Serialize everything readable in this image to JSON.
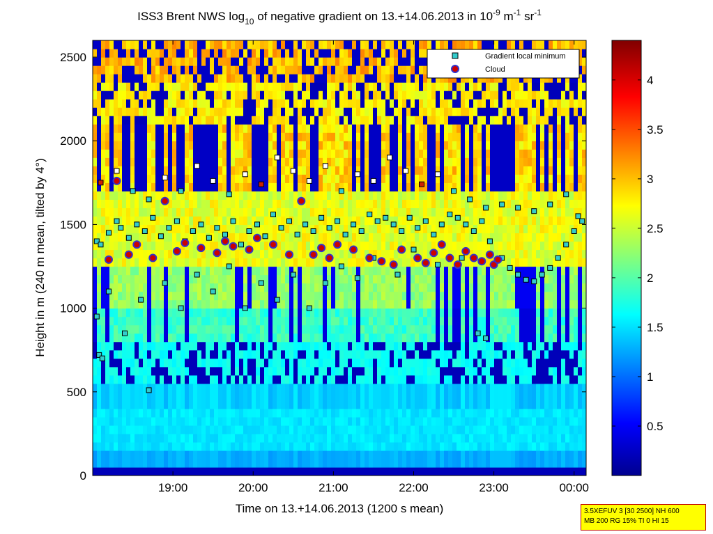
{
  "chart_data": {
    "type": "heatmap",
    "title": {
      "pre": "ISS3 Brent NWS log",
      "sub1": "10",
      "mid": " of negative gradient on 13.+14.06.2013 in 10",
      "sup1": "-9",
      "mid2": " m",
      "sup2": "-1",
      "mid3": " sr",
      "sup3": "-1"
    },
    "xlabel": "Time on 13.+14.06.2013 (1200 s mean)",
    "ylabel": "Height in m (240 m mean, tilted by 4°)",
    "xlim_hours": [
      18.0,
      24.15
    ],
    "ylim": [
      0,
      2600
    ],
    "x_ticks": [
      {
        "value": 19.0,
        "label": "19:00"
      },
      {
        "value": 20.0,
        "label": "20:00"
      },
      {
        "value": 21.0,
        "label": "21:00"
      },
      {
        "value": 22.0,
        "label": "22:00"
      },
      {
        "value": 23.0,
        "label": "23:00"
      },
      {
        "value": 24.0,
        "label": "00:00"
      }
    ],
    "y_ticks": [
      {
        "value": 0,
        "label": "0"
      },
      {
        "value": 500,
        "label": "500"
      },
      {
        "value": 1000,
        "label": "1000"
      },
      {
        "value": 1500,
        "label": "1500"
      },
      {
        "value": 2000,
        "label": "2000"
      },
      {
        "value": 2500,
        "label": "2500"
      }
    ],
    "colorbar": {
      "range": [
        0,
        4.4
      ],
      "ticks": [
        {
          "value": 0.5,
          "label": "0.5"
        },
        {
          "value": 1.0,
          "label": "1"
        },
        {
          "value": 1.5,
          "label": "1.5"
        },
        {
          "value": 2.0,
          "label": "2"
        },
        {
          "value": 2.5,
          "label": "2.5"
        },
        {
          "value": 3.0,
          "label": "3"
        },
        {
          "value": 3.5,
          "label": "3.5"
        },
        {
          "value": 4.0,
          "label": "4"
        }
      ],
      "colormap": "jet"
    },
    "legend": {
      "placement": "top-right",
      "entries": [
        {
          "label": "Gradient local minimum",
          "marker": "square",
          "color": "#33cccc"
        },
        {
          "label": "Cloud",
          "marker": "circle",
          "color": "#cc0000",
          "edge": "#3333cc"
        }
      ]
    },
    "series": [
      {
        "name": "Gradient local minimum",
        "marker": "square",
        "points": [
          [
            18.05,
            1400
          ],
          [
            18.1,
            1380
          ],
          [
            18.2,
            1450
          ],
          [
            18.3,
            1520
          ],
          [
            18.35,
            1480
          ],
          [
            18.45,
            1420
          ],
          [
            18.55,
            1500
          ],
          [
            18.65,
            1460
          ],
          [
            18.75,
            1540
          ],
          [
            18.85,
            1430
          ],
          [
            18.95,
            1480
          ],
          [
            19.05,
            1520
          ],
          [
            19.15,
            1400
          ],
          [
            19.25,
            1460
          ],
          [
            19.35,
            1500
          ],
          [
            19.45,
            1420
          ],
          [
            19.55,
            1480
          ],
          [
            19.65,
            1440
          ],
          [
            19.75,
            1520
          ],
          [
            19.85,
            1380
          ],
          [
            19.95,
            1460
          ],
          [
            20.05,
            1500
          ],
          [
            20.15,
            1430
          ],
          [
            20.25,
            1560
          ],
          [
            20.35,
            1480
          ],
          [
            20.45,
            1520
          ],
          [
            20.55,
            1440
          ],
          [
            20.65,
            1500
          ],
          [
            20.75,
            1460
          ],
          [
            20.85,
            1540
          ],
          [
            20.95,
            1480
          ],
          [
            21.05,
            1520
          ],
          [
            21.15,
            1440
          ],
          [
            21.25,
            1500
          ],
          [
            21.35,
            1460
          ],
          [
            21.45,
            1560
          ],
          [
            21.55,
            1520
          ],
          [
            21.65,
            1540
          ],
          [
            21.75,
            1500
          ],
          [
            21.85,
            1460
          ],
          [
            21.95,
            1540
          ],
          [
            22.05,
            1480
          ],
          [
            22.15,
            1520
          ],
          [
            22.25,
            1440
          ],
          [
            22.35,
            1500
          ],
          [
            22.45,
            1560
          ],
          [
            22.55,
            1540
          ],
          [
            22.65,
            1500
          ],
          [
            22.75,
            1460
          ],
          [
            22.85,
            1520
          ],
          [
            22.95,
            1400
          ],
          [
            23.1,
            1300
          ],
          [
            23.2,
            1240
          ],
          [
            23.3,
            1200
          ],
          [
            23.4,
            1170
          ],
          [
            23.5,
            1160
          ],
          [
            23.6,
            1200
          ],
          [
            23.7,
            1240
          ],
          [
            23.8,
            1300
          ],
          [
            23.9,
            1380
          ],
          [
            24.0,
            1460
          ],
          [
            24.1,
            1520
          ],
          [
            18.05,
            950
          ],
          [
            18.08,
            720
          ],
          [
            18.12,
            700
          ],
          [
            18.2,
            1100
          ],
          [
            18.4,
            850
          ],
          [
            18.6,
            1050
          ],
          [
            18.7,
            510
          ],
          [
            18.9,
            1150
          ],
          [
            19.1,
            1000
          ],
          [
            19.3,
            1200
          ],
          [
            19.5,
            1100
          ],
          [
            19.7,
            1250
          ],
          [
            19.9,
            1000
          ],
          [
            20.1,
            1150
          ],
          [
            20.3,
            1050
          ],
          [
            20.5,
            1200
          ],
          [
            20.7,
            1000
          ],
          [
            20.9,
            1150
          ],
          [
            21.1,
            1250
          ],
          [
            21.3,
            1180
          ],
          [
            21.5,
            1300
          ],
          [
            21.8,
            1200
          ],
          [
            22.0,
            1350
          ],
          [
            22.3,
            1260
          ],
          [
            22.6,
            1300
          ],
          [
            22.8,
            850
          ],
          [
            22.9,
            820
          ],
          [
            18.1,
            1750
          ],
          [
            18.3,
            1820
          ],
          [
            18.5,
            1700
          ],
          [
            18.7,
            1650
          ],
          [
            18.9,
            1780
          ],
          [
            19.1,
            1700
          ],
          [
            19.3,
            1850
          ],
          [
            19.5,
            1760
          ],
          [
            19.7,
            1680
          ],
          [
            19.9,
            1800
          ],
          [
            20.1,
            1740
          ],
          [
            20.3,
            1900
          ],
          [
            20.5,
            1820
          ],
          [
            20.7,
            1760
          ],
          [
            20.9,
            1850
          ],
          [
            21.1,
            1700
          ],
          [
            21.3,
            1800
          ],
          [
            21.5,
            1760
          ],
          [
            21.7,
            1900
          ],
          [
            21.9,
            1820
          ],
          [
            22.1,
            1740
          ],
          [
            22.3,
            1800
          ],
          [
            22.5,
            1700
          ],
          [
            22.7,
            1650
          ],
          [
            22.9,
            1600
          ],
          [
            23.1,
            1620
          ],
          [
            23.3,
            1600
          ],
          [
            23.5,
            1580
          ],
          [
            23.7,
            1620
          ],
          [
            23.9,
            1680
          ],
          [
            24.05,
            1550
          ]
        ]
      },
      {
        "name": "Cloud",
        "marker": "circle",
        "points": [
          [
            18.2,
            1290
          ],
          [
            18.3,
            1760
          ],
          [
            18.45,
            1320
          ],
          [
            18.55,
            1380
          ],
          [
            18.75,
            1300
          ],
          [
            18.9,
            1640
          ],
          [
            19.05,
            1340
          ],
          [
            19.15,
            1390
          ],
          [
            19.35,
            1360
          ],
          [
            19.55,
            1330
          ],
          [
            19.65,
            1400
          ],
          [
            19.75,
            1370
          ],
          [
            19.95,
            1350
          ],
          [
            20.05,
            1420
          ],
          [
            20.25,
            1380
          ],
          [
            20.45,
            1320
          ],
          [
            20.6,
            1640
          ],
          [
            20.75,
            1320
          ],
          [
            20.85,
            1360
          ],
          [
            20.95,
            1300
          ],
          [
            21.05,
            1380
          ],
          [
            21.25,
            1350
          ],
          [
            21.45,
            1300
          ],
          [
            21.6,
            1280
          ],
          [
            21.75,
            1260
          ],
          [
            21.85,
            1350
          ],
          [
            22.05,
            1300
          ],
          [
            22.15,
            1270
          ],
          [
            22.25,
            1330
          ],
          [
            22.35,
            1380
          ],
          [
            22.45,
            1300
          ],
          [
            22.55,
            1260
          ],
          [
            22.65,
            1340
          ],
          [
            22.75,
            1300
          ],
          [
            22.85,
            1280
          ],
          [
            22.95,
            1320
          ],
          [
            23.0,
            1260
          ],
          [
            23.05,
            1290
          ]
        ]
      }
    ]
  },
  "infobox": {
    "line1": "3.5XEFUV 3 [30 2500] NH 600",
    "line2": "MB 200 RG 15% TI 0 HI 15"
  }
}
